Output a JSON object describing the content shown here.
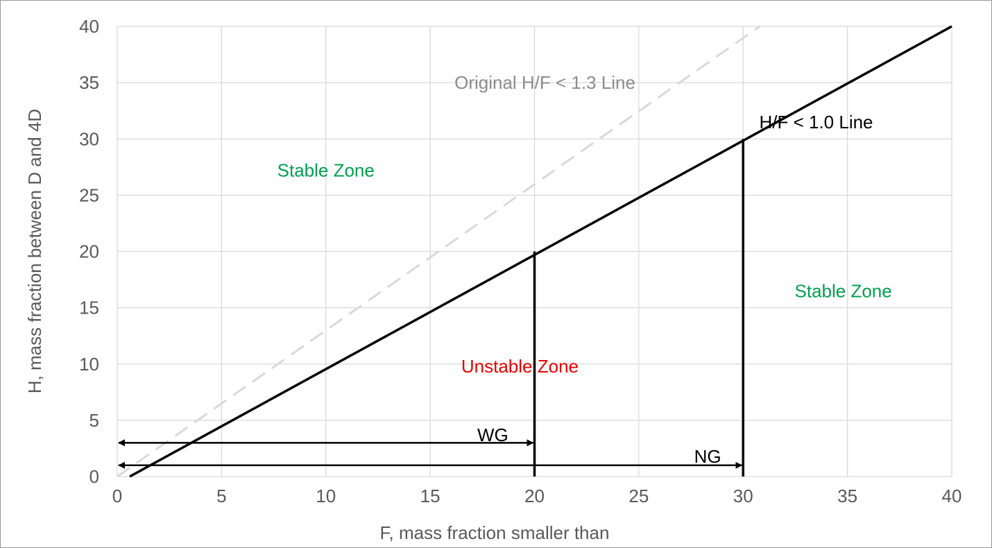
{
  "chart_data": {
    "type": "line",
    "xlabel": "F, mass fraction smaller than",
    "ylabel": "H, mass fraction between D and 4D",
    "xlim": [
      0,
      40
    ],
    "ylim": [
      0,
      40
    ],
    "x_ticks": [
      0,
      5,
      10,
      15,
      20,
      25,
      30,
      35,
      40
    ],
    "y_ticks": [
      0,
      5,
      10,
      15,
      20,
      25,
      30,
      35,
      40
    ],
    "grid": true,
    "colors": {
      "grid": "#d9d9d9",
      "axis_text": "#595959",
      "main_line": "#000000",
      "dashed_line": "#d9d9d9",
      "stable": "#00a050",
      "unstable": "#e60000",
      "original_label": "#8c8c8c"
    },
    "series": [
      {
        "name": "Original H/F < 1.3 Line",
        "style": "dashed",
        "x": [
          0,
          30.8
        ],
        "y": [
          0,
          40
        ]
      },
      {
        "name": "H/F < 1.0 Line",
        "style": "solid",
        "x": [
          0.6,
          40
        ],
        "y": [
          0,
          40
        ]
      }
    ],
    "verticals": [
      {
        "x": 20,
        "y": [
          0,
          20
        ]
      },
      {
        "x": 30,
        "y": [
          0,
          30
        ]
      }
    ],
    "arrows": [
      {
        "label": "WG",
        "x": [
          0,
          20
        ],
        "y": 3
      },
      {
        "label": "NG",
        "x": [
          0,
          30
        ],
        "y": 1
      }
    ],
    "annotations": [
      {
        "text": "Original H/F < 1.3 Line",
        "x": 20.5,
        "y": 35,
        "role": "original_label"
      },
      {
        "text": "H/F < 1.0 Line",
        "x": 33.5,
        "y": 31.5,
        "role": "main_line"
      },
      {
        "text": "Stable Zone",
        "x": 10,
        "y": 27.2,
        "role": "stable"
      },
      {
        "text": "Stable Zone",
        "x": 34.8,
        "y": 16.5,
        "role": "stable"
      },
      {
        "text": "Unstable Zone",
        "x": 19.3,
        "y": 9.8,
        "role": "unstable"
      },
      {
        "text": "WG",
        "x": 18,
        "y": 3.7,
        "role": "main_line"
      },
      {
        "text": "NG",
        "x": 28.3,
        "y": 1.8,
        "role": "main_line"
      }
    ]
  }
}
